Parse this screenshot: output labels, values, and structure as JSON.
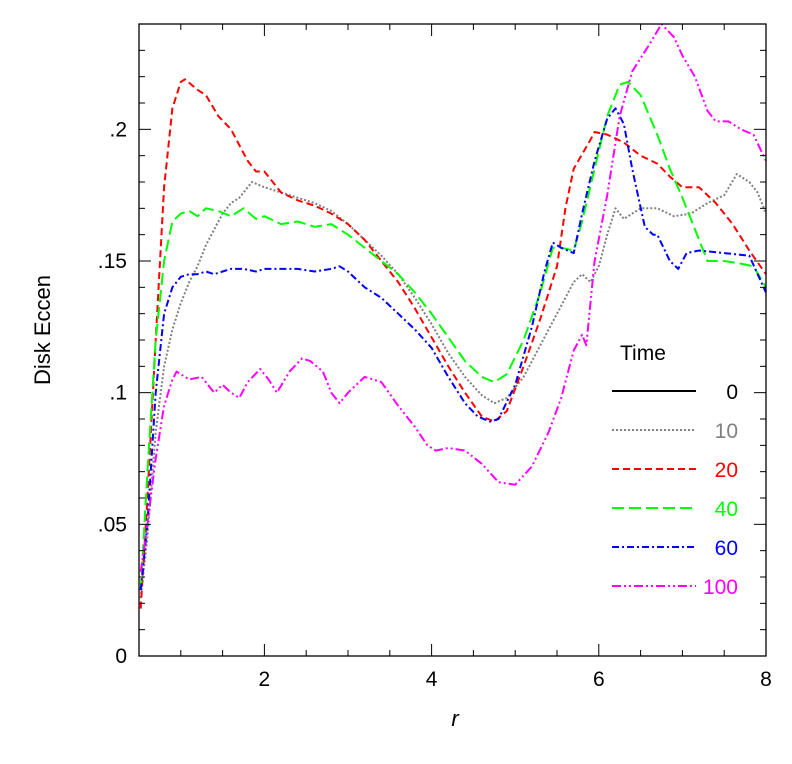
{
  "chart_data": {
    "type": "line",
    "title": "",
    "xlabel": "r",
    "ylabel": "Disk Eccen",
    "xlim": [
      0.5,
      8
    ],
    "ylim": [
      0,
      0.24
    ],
    "x_ticks": [
      2,
      4,
      6,
      8
    ],
    "x_tick_labels": [
      "2",
      "4",
      "6",
      "8"
    ],
    "y_ticks": [
      0,
      0.05,
      0.1,
      0.15,
      0.2
    ],
    "y_tick_labels": [
      "0",
      ".05",
      ".1",
      ".15",
      ".2"
    ],
    "grid": false,
    "legend": {
      "title": "Time",
      "position": "right-middle"
    },
    "series": [
      {
        "name": "0",
        "color": "#000000",
        "dash": "solid",
        "points": []
      },
      {
        "name": "10",
        "color": "#808080",
        "dash": "dotted",
        "points": [
          [
            0.52,
            0.022
          ],
          [
            0.6,
            0.045
          ],
          [
            0.7,
            0.085
          ],
          [
            0.8,
            0.11
          ],
          [
            0.9,
            0.124
          ],
          [
            1.0,
            0.134
          ],
          [
            1.1,
            0.142
          ],
          [
            1.2,
            0.148
          ],
          [
            1.3,
            0.156
          ],
          [
            1.4,
            0.162
          ],
          [
            1.5,
            0.168
          ],
          [
            1.6,
            0.172
          ],
          [
            1.7,
            0.174
          ],
          [
            1.8,
            0.178
          ],
          [
            1.85,
            0.18
          ],
          [
            2.0,
            0.178
          ],
          [
            2.2,
            0.176
          ],
          [
            2.4,
            0.174
          ],
          [
            2.6,
            0.172
          ],
          [
            2.8,
            0.169
          ],
          [
            3.0,
            0.164
          ],
          [
            3.2,
            0.158
          ],
          [
            3.4,
            0.152
          ],
          [
            3.6,
            0.145
          ],
          [
            3.8,
            0.136
          ],
          [
            4.0,
            0.126
          ],
          [
            4.2,
            0.115
          ],
          [
            4.4,
            0.106
          ],
          [
            4.6,
            0.099
          ],
          [
            4.75,
            0.096
          ],
          [
            4.9,
            0.098
          ],
          [
            5.1,
            0.106
          ],
          [
            5.3,
            0.118
          ],
          [
            5.5,
            0.13
          ],
          [
            5.7,
            0.142
          ],
          [
            5.8,
            0.145
          ],
          [
            5.9,
            0.142
          ],
          [
            6.0,
            0.148
          ],
          [
            6.1,
            0.16
          ],
          [
            6.2,
            0.17
          ],
          [
            6.3,
            0.166
          ],
          [
            6.5,
            0.17
          ],
          [
            6.7,
            0.17
          ],
          [
            6.9,
            0.167
          ],
          [
            7.1,
            0.168
          ],
          [
            7.3,
            0.172
          ],
          [
            7.5,
            0.175
          ],
          [
            7.65,
            0.183
          ],
          [
            7.8,
            0.18
          ],
          [
            7.9,
            0.176
          ],
          [
            8.0,
            0.168
          ]
        ]
      },
      {
        "name": "20",
        "color": "#ff0000",
        "dash": "dashed",
        "points": [
          [
            0.52,
            0.018
          ],
          [
            0.6,
            0.06
          ],
          [
            0.7,
            0.12
          ],
          [
            0.8,
            0.178
          ],
          [
            0.9,
            0.208
          ],
          [
            1.0,
            0.218
          ],
          [
            1.05,
            0.219
          ],
          [
            1.2,
            0.215
          ],
          [
            1.3,
            0.213
          ],
          [
            1.45,
            0.205
          ],
          [
            1.6,
            0.2
          ],
          [
            1.7,
            0.194
          ],
          [
            1.8,
            0.188
          ],
          [
            1.9,
            0.184
          ],
          [
            2.0,
            0.184
          ],
          [
            2.2,
            0.176
          ],
          [
            2.4,
            0.173
          ],
          [
            2.6,
            0.171
          ],
          [
            2.8,
            0.168
          ],
          [
            3.0,
            0.164
          ],
          [
            3.2,
            0.158
          ],
          [
            3.4,
            0.15
          ],
          [
            3.6,
            0.142
          ],
          [
            3.8,
            0.132
          ],
          [
            4.0,
            0.121
          ],
          [
            4.2,
            0.11
          ],
          [
            4.4,
            0.1
          ],
          [
            4.6,
            0.091
          ],
          [
            4.75,
            0.089
          ],
          [
            4.9,
            0.093
          ],
          [
            5.1,
            0.11
          ],
          [
            5.3,
            0.128
          ],
          [
            5.5,
            0.148
          ],
          [
            5.6,
            0.17
          ],
          [
            5.7,
            0.185
          ],
          [
            5.9,
            0.196
          ],
          [
            5.95,
            0.199
          ],
          [
            6.1,
            0.198
          ],
          [
            6.3,
            0.195
          ],
          [
            6.5,
            0.19
          ],
          [
            6.7,
            0.187
          ],
          [
            6.85,
            0.182
          ],
          [
            7.0,
            0.178
          ],
          [
            7.2,
            0.178
          ],
          [
            7.4,
            0.172
          ],
          [
            7.6,
            0.164
          ],
          [
            7.8,
            0.154
          ],
          [
            8.0,
            0.145
          ]
        ]
      },
      {
        "name": "40",
        "color": "#00ff00",
        "dash": "longdash",
        "points": [
          [
            0.52,
            0.025
          ],
          [
            0.6,
            0.07
          ],
          [
            0.7,
            0.12
          ],
          [
            0.8,
            0.15
          ],
          [
            0.9,
            0.165
          ],
          [
            1.0,
            0.168
          ],
          [
            1.1,
            0.169
          ],
          [
            1.2,
            0.167
          ],
          [
            1.3,
            0.17
          ],
          [
            1.45,
            0.169
          ],
          [
            1.6,
            0.167
          ],
          [
            1.75,
            0.17
          ],
          [
            1.9,
            0.166
          ],
          [
            2.0,
            0.167
          ],
          [
            2.2,
            0.164
          ],
          [
            2.4,
            0.165
          ],
          [
            2.6,
            0.163
          ],
          [
            2.8,
            0.164
          ],
          [
            3.0,
            0.16
          ],
          [
            3.2,
            0.155
          ],
          [
            3.4,
            0.15
          ],
          [
            3.6,
            0.145
          ],
          [
            3.8,
            0.138
          ],
          [
            4.0,
            0.13
          ],
          [
            4.2,
            0.121
          ],
          [
            4.4,
            0.112
          ],
          [
            4.6,
            0.106
          ],
          [
            4.75,
            0.104
          ],
          [
            4.9,
            0.107
          ],
          [
            5.1,
            0.12
          ],
          [
            5.3,
            0.138
          ],
          [
            5.45,
            0.155
          ],
          [
            5.55,
            0.155
          ],
          [
            5.7,
            0.154
          ],
          [
            5.8,
            0.165
          ],
          [
            5.95,
            0.185
          ],
          [
            6.1,
            0.205
          ],
          [
            6.25,
            0.217
          ],
          [
            6.35,
            0.218
          ],
          [
            6.5,
            0.213
          ],
          [
            6.7,
            0.198
          ],
          [
            6.85,
            0.185
          ],
          [
            7.0,
            0.174
          ],
          [
            7.1,
            0.166
          ],
          [
            7.2,
            0.158
          ],
          [
            7.3,
            0.15
          ],
          [
            7.5,
            0.15
          ],
          [
            7.7,
            0.149
          ],
          [
            7.85,
            0.148
          ],
          [
            8.0,
            0.14
          ]
        ]
      },
      {
        "name": "60",
        "color": "#0000ff",
        "dash": "dashdot",
        "points": [
          [
            0.52,
            0.025
          ],
          [
            0.6,
            0.05
          ],
          [
            0.7,
            0.1
          ],
          [
            0.8,
            0.13
          ],
          [
            0.9,
            0.14
          ],
          [
            1.0,
            0.144
          ],
          [
            1.1,
            0.145
          ],
          [
            1.2,
            0.145
          ],
          [
            1.3,
            0.146
          ],
          [
            1.4,
            0.145
          ],
          [
            1.5,
            0.146
          ],
          [
            1.6,
            0.147
          ],
          [
            1.75,
            0.147
          ],
          [
            1.9,
            0.146
          ],
          [
            2.0,
            0.147
          ],
          [
            2.2,
            0.147
          ],
          [
            2.4,
            0.147
          ],
          [
            2.6,
            0.146
          ],
          [
            2.8,
            0.147
          ],
          [
            2.9,
            0.148
          ],
          [
            3.0,
            0.146
          ],
          [
            3.2,
            0.14
          ],
          [
            3.4,
            0.136
          ],
          [
            3.6,
            0.13
          ],
          [
            3.8,
            0.124
          ],
          [
            4.0,
            0.117
          ],
          [
            4.2,
            0.106
          ],
          [
            4.4,
            0.096
          ],
          [
            4.55,
            0.091
          ],
          [
            4.7,
            0.089
          ],
          [
            4.8,
            0.09
          ],
          [
            5.0,
            0.103
          ],
          [
            5.2,
            0.125
          ],
          [
            5.35,
            0.146
          ],
          [
            5.45,
            0.157
          ],
          [
            5.55,
            0.155
          ],
          [
            5.7,
            0.153
          ],
          [
            5.8,
            0.168
          ],
          [
            5.95,
            0.188
          ],
          [
            6.1,
            0.204
          ],
          [
            6.2,
            0.208
          ],
          [
            6.3,
            0.202
          ],
          [
            6.4,
            0.185
          ],
          [
            6.55,
            0.163
          ],
          [
            6.65,
            0.16
          ],
          [
            6.7,
            0.16
          ],
          [
            6.85,
            0.15
          ],
          [
            6.95,
            0.147
          ],
          [
            7.05,
            0.153
          ],
          [
            7.2,
            0.154
          ],
          [
            7.5,
            0.153
          ],
          [
            7.8,
            0.152
          ],
          [
            8.0,
            0.138
          ]
        ]
      },
      {
        "name": "100",
        "color": "#ff00ff",
        "dash": "dashdotdot",
        "points": [
          [
            0.52,
            0.032
          ],
          [
            0.6,
            0.05
          ],
          [
            0.7,
            0.075
          ],
          [
            0.8,
            0.095
          ],
          [
            0.9,
            0.105
          ],
          [
            0.95,
            0.108
          ],
          [
            1.1,
            0.105
          ],
          [
            1.25,
            0.106
          ],
          [
            1.4,
            0.1
          ],
          [
            1.5,
            0.103
          ],
          [
            1.6,
            0.1
          ],
          [
            1.7,
            0.098
          ],
          [
            1.8,
            0.104
          ],
          [
            1.95,
            0.109
          ],
          [
            2.05,
            0.105
          ],
          [
            2.15,
            0.1
          ],
          [
            2.3,
            0.108
          ],
          [
            2.45,
            0.113
          ],
          [
            2.55,
            0.112
          ],
          [
            2.7,
            0.108
          ],
          [
            2.8,
            0.1
          ],
          [
            2.9,
            0.096
          ],
          [
            3.0,
            0.1
          ],
          [
            3.2,
            0.106
          ],
          [
            3.4,
            0.104
          ],
          [
            3.6,
            0.095
          ],
          [
            3.8,
            0.087
          ],
          [
            3.95,
            0.08
          ],
          [
            4.05,
            0.078
          ],
          [
            4.2,
            0.079
          ],
          [
            4.4,
            0.078
          ],
          [
            4.6,
            0.073
          ],
          [
            4.8,
            0.066
          ],
          [
            5.0,
            0.065
          ],
          [
            5.2,
            0.072
          ],
          [
            5.4,
            0.085
          ],
          [
            5.55,
            0.098
          ],
          [
            5.7,
            0.116
          ],
          [
            5.8,
            0.122
          ],
          [
            5.85,
            0.118
          ],
          [
            5.95,
            0.15
          ],
          [
            6.1,
            0.175
          ],
          [
            6.25,
            0.205
          ],
          [
            6.4,
            0.222
          ],
          [
            6.6,
            0.232
          ],
          [
            6.75,
            0.24
          ],
          [
            6.9,
            0.235
          ],
          [
            7.0,
            0.228
          ],
          [
            7.15,
            0.22
          ],
          [
            7.3,
            0.207
          ],
          [
            7.4,
            0.203
          ],
          [
            7.55,
            0.203
          ],
          [
            7.7,
            0.2
          ],
          [
            7.85,
            0.198
          ],
          [
            8.0,
            0.188
          ]
        ]
      }
    ]
  }
}
